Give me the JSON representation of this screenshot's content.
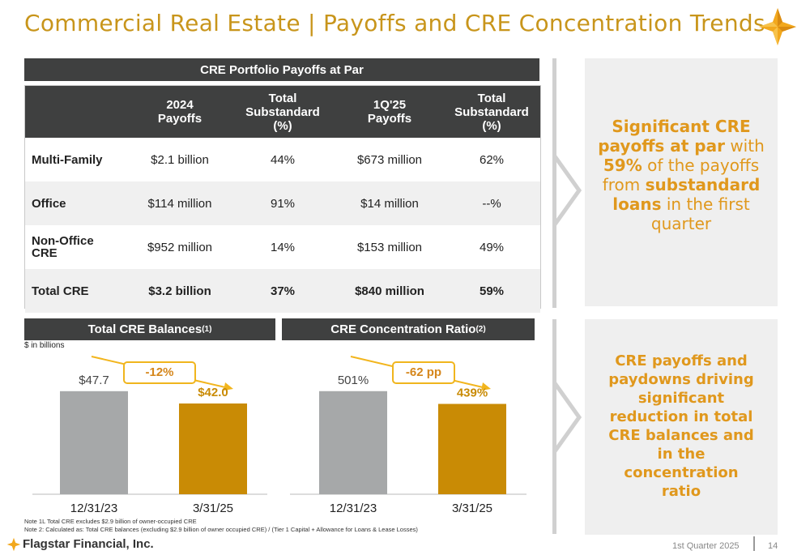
{
  "page": {
    "title": "Commercial Real Estate | Payoffs and CRE Concentration Trends",
    "footer_quarter": "1st Quarter 2025",
    "page_number": "14",
    "company": "Flagstar Financial, Inc.",
    "brand_color": "#c8951b"
  },
  "payoffs_table": {
    "heading": "CRE Portfolio Payoffs at Par",
    "columns": [
      "",
      "2024 Payoffs",
      "Total Substandard (%)",
      "1Q'25 Payoffs",
      "Total Substandard (%)"
    ],
    "rows": [
      {
        "label": "Multi-Family",
        "c1": "$2.1 billion",
        "c2": "44%",
        "c3": "$673 million",
        "c4": "62%"
      },
      {
        "label": "Office",
        "c1": "$114 million",
        "c2": "91%",
        "c3": "$14 million",
        "c4": "--%"
      },
      {
        "label": "Non-Office CRE",
        "c1": "$952 million",
        "c2": "14%",
        "c3": "$153 million",
        "c4": "49%"
      },
      {
        "label": "Total CRE",
        "c1": "$3.2 billion",
        "c2": "37%",
        "c3": "$840 million",
        "c4": "59%"
      }
    ]
  },
  "callouts": {
    "top": {
      "p1": "Significant CRE payoffs at par",
      "p2": " with ",
      "p3": "59%",
      "p4": " of the payoffs from ",
      "p5": "substandard loans",
      "p6": " in the first quarter"
    },
    "bottom": "CRE payoffs and paydowns driving significant reduction in total CRE balances and in the concentration ratio"
  },
  "balances_chart": {
    "heading": "Total CRE Balances",
    "heading_sup": "(1)",
    "unit_note": "$ in billions",
    "change_badge": "-12%"
  },
  "ratio_chart": {
    "heading": "CRE Concentration Ratio",
    "heading_sup": "(2)",
    "change_badge": "-62 pp"
  },
  "chart_data": [
    {
      "type": "bar",
      "title": "Total CRE Balances",
      "categories": [
        "12/31/23",
        "3/31/25"
      ],
      "values": [
        47.7,
        42.0
      ],
      "value_labels": [
        "$47.7",
        "$42.0"
      ],
      "colors": [
        "#a6a8a9",
        "#c98b05"
      ],
      "ylim": [
        0,
        60
      ]
    },
    {
      "type": "bar",
      "title": "CRE Concentration Ratio",
      "categories": [
        "12/31/23",
        "3/31/25"
      ],
      "values": [
        501,
        439
      ],
      "value_labels": [
        "501%",
        "439%"
      ],
      "colors": [
        "#a6a8a9",
        "#c98b05"
      ],
      "ylim": [
        0,
        630
      ]
    }
  ],
  "notes": {
    "note1": "Note 1L Total CRE excludes $2.9 billion of owner-occupied CRE",
    "note2": "Note 2: Calculated as: Total CRE balances (excluding $2.9 billion of owner occupied CRE) / (Tier 1 Capital + Allowance for Loans & Lease Losses)"
  }
}
